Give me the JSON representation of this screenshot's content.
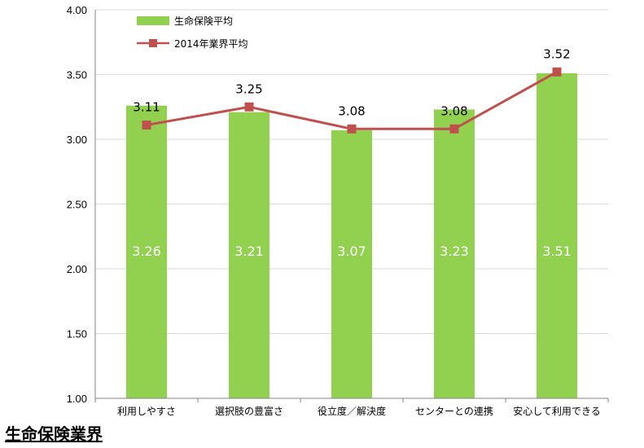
{
  "page_title": "生命保険業界",
  "colors": {
    "bar": "#92d050",
    "line": "#c0504d",
    "grid": "#d9d9d9",
    "axis": "#868686"
  },
  "chart_data": {
    "type": "bar",
    "categories": [
      "利用しやすさ",
      "選択肢の豊富さ",
      "役立度／解決度",
      "センターとの連携",
      "安心して利用できる"
    ],
    "series": [
      {
        "name": "生命保険平均",
        "type": "bar",
        "values": [
          3.26,
          3.21,
          3.07,
          3.23,
          3.51
        ],
        "labels": [
          "3.26",
          "3.21",
          "3.07",
          "3.23",
          "3.51"
        ]
      },
      {
        "name": "2014年業界平均",
        "type": "line",
        "values": [
          3.11,
          3.25,
          3.08,
          3.08,
          3.52
        ],
        "labels": [
          "3.11",
          "3.25",
          "3.08",
          "3.08",
          "3.52"
        ]
      }
    ],
    "ylim": [
      1.0,
      4.0
    ],
    "yticks": [
      "1.00",
      "1.50",
      "2.00",
      "2.50",
      "3.00",
      "3.50",
      "4.00"
    ],
    "grid": true,
    "legend_position": "top-left"
  }
}
